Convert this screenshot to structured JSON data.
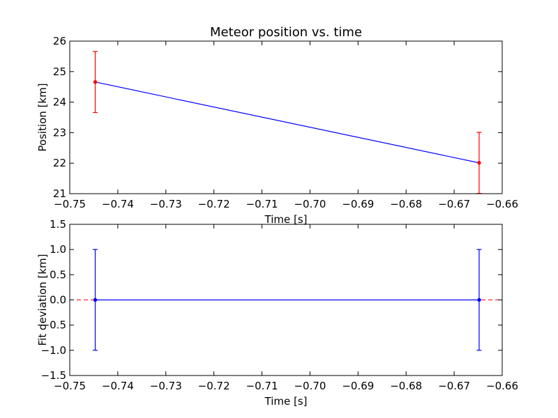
{
  "figure_title": "Meteor position vs. time",
  "colors": {
    "line": "#0000ff",
    "errorbar_top": "#ff0000",
    "errorbar_bottom": "#0000ff",
    "zero_line": "#ff0000",
    "axes": "#000000",
    "background": "#ffffff"
  },
  "chart_data": [
    {
      "type": "line",
      "title": "Meteor position vs. time",
      "xlabel": "Time [s]",
      "ylabel": "Position [km]",
      "xlim": [
        -0.75,
        -0.66
      ],
      "ylim": [
        21,
        26
      ],
      "xticks": [
        -0.75,
        -0.74,
        -0.73,
        -0.72,
        -0.71,
        -0.7,
        -0.69,
        -0.68,
        -0.67,
        -0.66
      ],
      "xtick_labels": [
        "−0.75",
        "−0.74",
        "−0.73",
        "−0.72",
        "−0.71",
        "−0.70",
        "−0.69",
        "−0.68",
        "−0.67",
        "−0.66"
      ],
      "yticks": [
        21,
        22,
        23,
        24,
        25,
        26
      ],
      "ytick_labels": [
        "21",
        "22",
        "23",
        "24",
        "25",
        "26"
      ],
      "grid": false,
      "series": [
        {
          "x": [
            -0.7447,
            -0.6648
          ],
          "y": [
            24.66,
            22.01
          ],
          "yerr": [
            1.0,
            1.0
          ],
          "line_color": "#0000ff",
          "errorbar_color": "#ff0000"
        }
      ]
    },
    {
      "type": "line",
      "title": "",
      "xlabel": "Time [s]",
      "ylabel": "Fit deviation [km]",
      "xlim": [
        -0.75,
        -0.66
      ],
      "ylim": [
        -1.5,
        1.5
      ],
      "xticks": [
        -0.75,
        -0.74,
        -0.73,
        -0.72,
        -0.71,
        -0.7,
        -0.69,
        -0.68,
        -0.67,
        -0.66
      ],
      "xtick_labels": [
        "−0.75",
        "−0.74",
        "−0.73",
        "−0.72",
        "−0.71",
        "−0.70",
        "−0.69",
        "−0.68",
        "−0.67",
        "−0.66"
      ],
      "yticks": [
        -1.5,
        -1.0,
        -0.5,
        0.0,
        0.5,
        1.0,
        1.5
      ],
      "ytick_labels": [
        "−1.5",
        "−1.0",
        "−0.5",
        "0.0",
        "0.5",
        "1.0",
        "1.5"
      ],
      "grid": false,
      "reference_line": {
        "y": 0.0,
        "style": "dashed",
        "color": "#ff0000"
      },
      "series": [
        {
          "x": [
            -0.7447,
            -0.6648
          ],
          "y": [
            0.0,
            0.0
          ],
          "yerr": [
            1.0,
            1.0
          ],
          "line_color": "#0000ff",
          "errorbar_color": "#0000ff"
        }
      ]
    }
  ]
}
